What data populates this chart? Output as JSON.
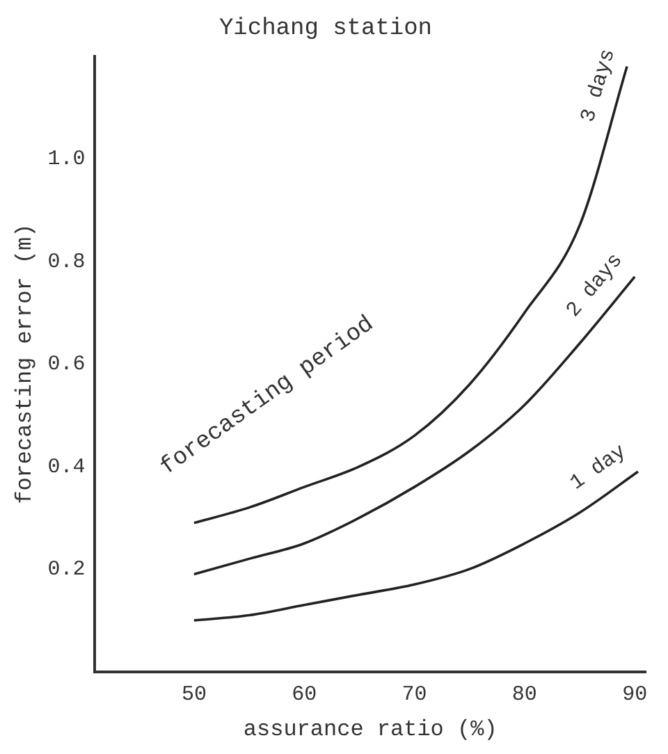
{
  "chart_data": {
    "type": "line",
    "title": "Yichang station",
    "xlabel": "assurance ratio (%)",
    "ylabel": "forecasting error (m)",
    "annotations": [
      "forecasting period"
    ],
    "xlim": [
      41,
      91
    ],
    "xticks": [
      50,
      60,
      70,
      80,
      90
    ],
    "ylim": [
      0,
      1.2
    ],
    "yticks": [
      {
        "value": 0.2,
        "label": "0.2"
      },
      {
        "value": 0.4,
        "label": "0.4"
      },
      {
        "value": 0.6,
        "label": "0.6"
      },
      {
        "value": 0.8,
        "label": "0.8"
      },
      {
        "value": 1,
        "label": "1.0"
      }
    ],
    "grid": false,
    "legend": false,
    "marker": "none",
    "line_style": "solid",
    "series": [
      {
        "name": "3 days",
        "color": "#222222",
        "x": [
          50,
          55,
          60,
          65,
          70,
          75,
          80,
          85,
          89.3
        ],
        "values": [
          0.29,
          0.32,
          0.36,
          0.4,
          0.46,
          0.56,
          0.7,
          0.87,
          1.18
        ]
      },
      {
        "name": "2 days",
        "color": "#222222",
        "x": [
          50,
          55,
          60,
          65,
          70,
          75,
          80,
          85,
          90
        ],
        "values": [
          0.19,
          0.22,
          0.25,
          0.3,
          0.36,
          0.43,
          0.52,
          0.64,
          0.77
        ]
      },
      {
        "name": "1 day",
        "color": "#222222",
        "x": [
          50,
          55,
          60,
          65,
          70,
          75,
          80,
          85,
          90.3
        ],
        "values": [
          0.1,
          0.11,
          0.13,
          0.15,
          0.17,
          0.2,
          0.25,
          0.31,
          0.39
        ]
      }
    ]
  }
}
